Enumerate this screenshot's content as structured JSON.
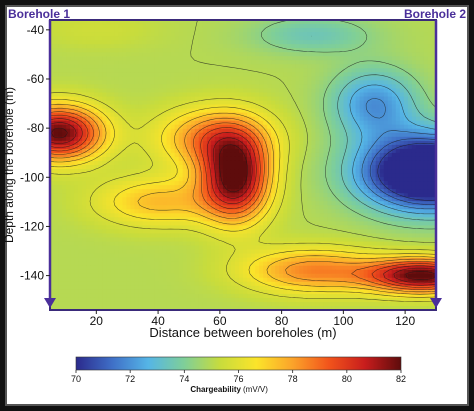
{
  "chart_data": {
    "type": "heatmap",
    "title": "",
    "xlabel": "Distance between boreholes (m)",
    "ylabel": "Depth along the borehole (m)",
    "xlim": [
      5,
      130
    ],
    "ylim": [
      -154,
      -36
    ],
    "xticks": [
      20,
      40,
      60,
      80,
      100,
      120
    ],
    "yticks": [
      -40,
      -60,
      -80,
      -100,
      -120,
      -140
    ],
    "corner_labels": {
      "left": "Borehole 1",
      "right": "Borehole 2"
    },
    "colorbar": {
      "title": "Chargeability",
      "unit": "(mV/V)",
      "range": [
        70,
        82
      ],
      "ticks": [
        70,
        72,
        74,
        76,
        78,
        80,
        82
      ],
      "colors": [
        "#2b2a8c",
        "#3f6fc7",
        "#55b5e6",
        "#7fcf98",
        "#c8dc3c",
        "#fbe42a",
        "#fba32a",
        "#f2541b",
        "#c81d1d",
        "#5e0c0c"
      ]
    },
    "grid": false,
    "contour_field": {
      "base": 75,
      "sources": [
        {
          "x": 8,
          "y": -82,
          "amp": 7,
          "sx": 14,
          "sy": 11
        },
        {
          "x": 65,
          "y": -100,
          "amp": 7,
          "sx": 11,
          "sy": 17
        },
        {
          "x": 58,
          "y": -84,
          "amp": 3.5,
          "sx": 18,
          "sy": 12
        },
        {
          "x": 126,
          "y": -140,
          "amp": 7,
          "sx": 18,
          "sy": 7
        },
        {
          "x": 90,
          "y": -138,
          "amp": 3.5,
          "sx": 22,
          "sy": 9
        },
        {
          "x": 128,
          "y": -98,
          "amp": -8,
          "sx": 22,
          "sy": 15
        },
        {
          "x": 110,
          "y": -70,
          "amp": -3,
          "sx": 14,
          "sy": 14
        },
        {
          "x": 40,
          "y": -110,
          "amp": 2.5,
          "sx": 20,
          "sy": 10
        },
        {
          "x": 90,
          "y": -42,
          "amp": -1.5,
          "sx": 20,
          "sy": 8
        },
        {
          "x": 20,
          "y": -40,
          "amp": 0.5,
          "sx": 20,
          "sy": 8
        }
      ]
    }
  }
}
